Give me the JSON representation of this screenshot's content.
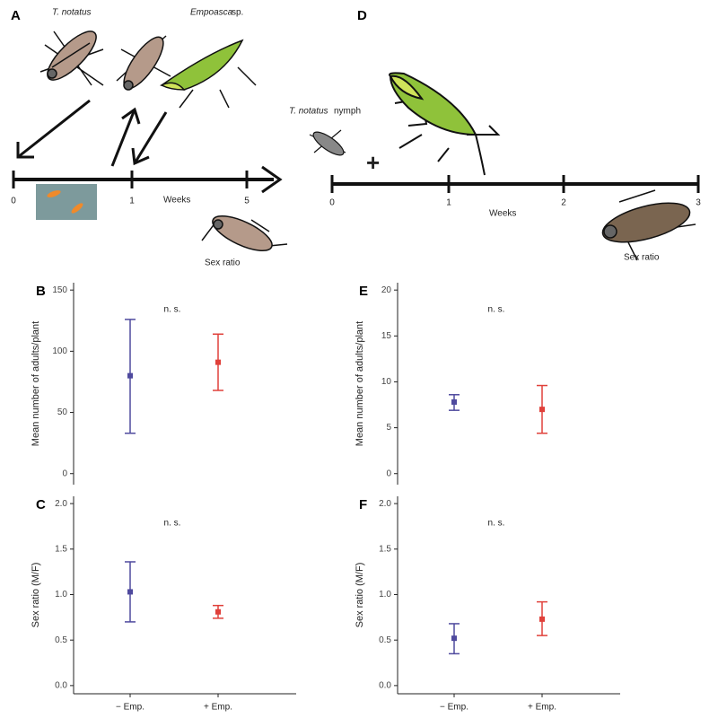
{
  "timeline_a": {
    "label": "A",
    "species1": "T. notatus",
    "species2": "Empoasca",
    "species2_suffix": "sp.",
    "axis_label": "Weeks",
    "ticks": [
      0,
      1,
      5
    ],
    "end_label": "Sex ratio"
  },
  "timeline_d": {
    "label": "D",
    "species": "T. notatus",
    "species_suffix": "nymph",
    "plus": "+",
    "axis_label": "Weeks",
    "ticks": [
      0,
      1,
      2,
      3
    ],
    "end_label": "Sex ratio"
  },
  "chart_data": [
    {
      "type": "errorbar",
      "panel": "B",
      "ylabel": "Mean number of adults/plant",
      "annotation": "n. s.",
      "values": [
        80,
        91
      ],
      "lower": [
        33,
        68
      ],
      "upper": [
        126,
        114
      ],
      "colors": [
        "#4f4a9e",
        "#e0403a"
      ],
      "ylim": [
        -9,
        156
      ],
      "yticks": [
        0,
        50,
        100,
        150
      ]
    },
    {
      "type": "errorbar",
      "panel": "C",
      "ylabel": "Sex ratio (M/F)",
      "annotation": "n. s.",
      "categories": [
        "− Emp.",
        "+ Emp."
      ],
      "values": [
        1.03,
        0.81
      ],
      "lower": [
        0.7,
        0.74
      ],
      "upper": [
        1.36,
        0.88
      ],
      "colors": [
        "#4f4a9e",
        "#e0403a"
      ],
      "ylim": [
        -0.09,
        2.08
      ],
      "yticks": [
        {
          "value": 0,
          "label": "0.0"
        },
        0.5,
        {
          "value": 1,
          "label": "1.0"
        },
        1.5,
        {
          "value": 2,
          "label": "2.0"
        }
      ]
    },
    {
      "type": "errorbar",
      "panel": "E",
      "ylabel": "Mean number of adults/plant",
      "annotation": "n. s.",
      "values": [
        7.8,
        7.0
      ],
      "lower": [
        6.9,
        4.4
      ],
      "upper": [
        8.6,
        9.6
      ],
      "colors": [
        "#4f4a9e",
        "#e0403a"
      ],
      "ylim": [
        -1.2,
        20.8
      ],
      "yticks": [
        0,
        5,
        10,
        15,
        20
      ]
    },
    {
      "type": "errorbar",
      "panel": "F",
      "ylabel": "Sex ratio (M/F)",
      "annotation": "n. s.",
      "categories": [
        "− Emp.",
        "+ Emp."
      ],
      "values": [
        0.52,
        0.73
      ],
      "lower": [
        0.35,
        0.55
      ],
      "upper": [
        0.68,
        0.92
      ],
      "colors": [
        "#4f4a9e",
        "#e0403a"
      ],
      "ylim": [
        -0.09,
        2.08
      ],
      "yticks": [
        {
          "value": 0,
          "label": "0.0"
        },
        0.5,
        {
          "value": 1,
          "label": "1.0"
        },
        1.5,
        {
          "value": 2,
          "label": "2.0"
        }
      ]
    }
  ]
}
